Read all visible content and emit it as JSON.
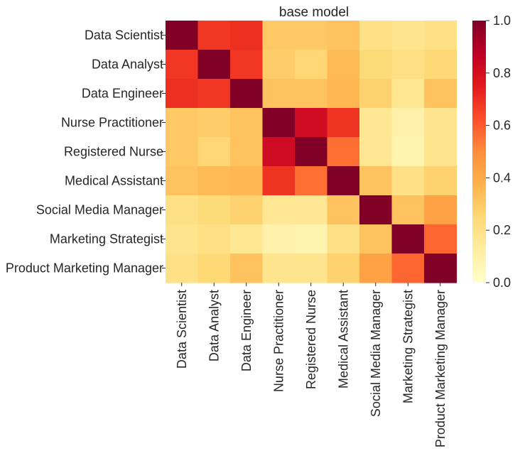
{
  "chart_data": {
    "type": "heatmap",
    "title": "base model",
    "labels": [
      "Data Scientist",
      "Data Analyst",
      "Data Engineer",
      "Nurse Practitioner",
      "Registered Nurse",
      "Medical Assistant",
      "Social Media Manager",
      "Marketing Strategist",
      "Product Marketing Manager"
    ],
    "matrix": [
      [
        1.0,
        0.68,
        0.7,
        0.3,
        0.3,
        0.32,
        0.2,
        0.18,
        0.2
      ],
      [
        0.68,
        1.0,
        0.68,
        0.29,
        0.26,
        0.35,
        0.24,
        0.21,
        0.25
      ],
      [
        0.7,
        0.68,
        1.0,
        0.32,
        0.32,
        0.36,
        0.27,
        0.17,
        0.32
      ],
      [
        0.3,
        0.29,
        0.32,
        1.0,
        0.82,
        0.69,
        0.16,
        0.1,
        0.18
      ],
      [
        0.3,
        0.26,
        0.32,
        0.82,
        1.0,
        0.56,
        0.16,
        0.08,
        0.18
      ],
      [
        0.32,
        0.35,
        0.36,
        0.69,
        0.56,
        1.0,
        0.32,
        0.2,
        0.27
      ],
      [
        0.2,
        0.24,
        0.27,
        0.16,
        0.16,
        0.32,
        1.0,
        0.32,
        0.43
      ],
      [
        0.18,
        0.21,
        0.17,
        0.1,
        0.08,
        0.2,
        0.32,
        1.0,
        0.58
      ],
      [
        0.2,
        0.25,
        0.32,
        0.18,
        0.18,
        0.27,
        0.43,
        0.58,
        1.0
      ]
    ],
    "colormap": "YlOrRd",
    "vmin": 0.0,
    "vmax": 1.0,
    "colorbar_ticks": [
      "0.0",
      "0.2",
      "0.4",
      "0.6",
      "0.8",
      "1.0"
    ],
    "colorbar_tick_values": [
      0.0,
      0.2,
      0.4,
      0.6,
      0.8,
      1.0
    ]
  },
  "colors": {
    "text": "#262626",
    "background": "#ffffff",
    "ylorrd_stops": [
      "#ffffcc",
      "#ffeda0",
      "#fed976",
      "#feb24c",
      "#fd8d3c",
      "#fc4e2a",
      "#e31a1c",
      "#bd0026",
      "#800026"
    ]
  }
}
